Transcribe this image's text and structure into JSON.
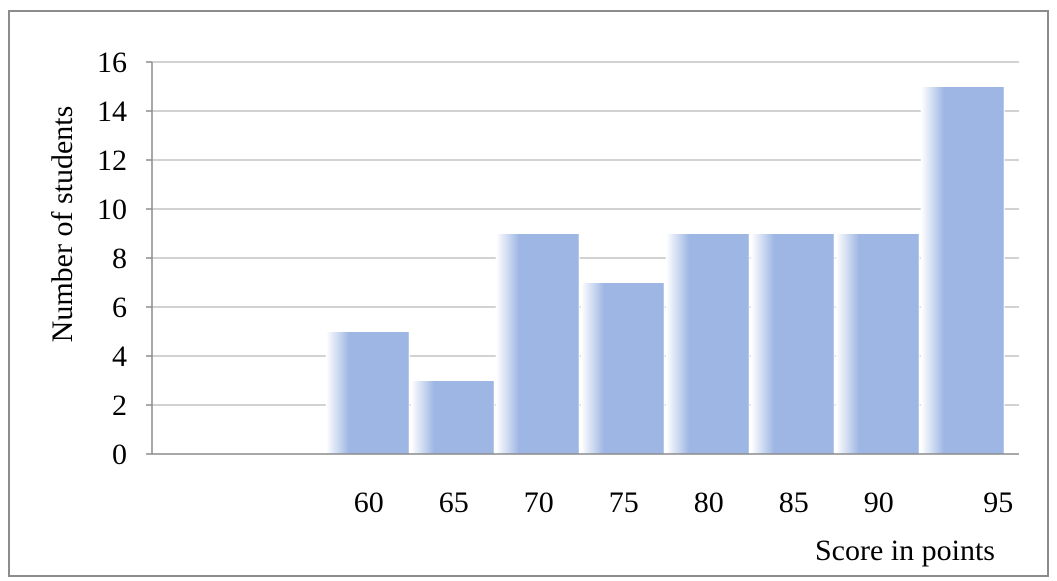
{
  "chart_data": {
    "type": "bar",
    "categories": [
      "60",
      "65",
      "70",
      "75",
      "80",
      "85",
      "90",
      "95"
    ],
    "values": [
      5,
      3,
      9,
      7,
      9,
      9,
      9,
      15
    ],
    "title": "",
    "xlabel": "Score in points",
    "ylabel": "Number of students",
    "ylim": [
      0,
      16
    ],
    "yticks": [
      "0",
      "2",
      "4",
      "6",
      "8",
      "10",
      "12",
      "14",
      "16"
    ],
    "grid": true,
    "legend": "none",
    "colors": {
      "bar": "#9db6e3",
      "bar_edge": "#ffffff",
      "grid": "#a6a6a6",
      "axis": "#8c8c8c",
      "frame": "#8c8c8c"
    }
  }
}
